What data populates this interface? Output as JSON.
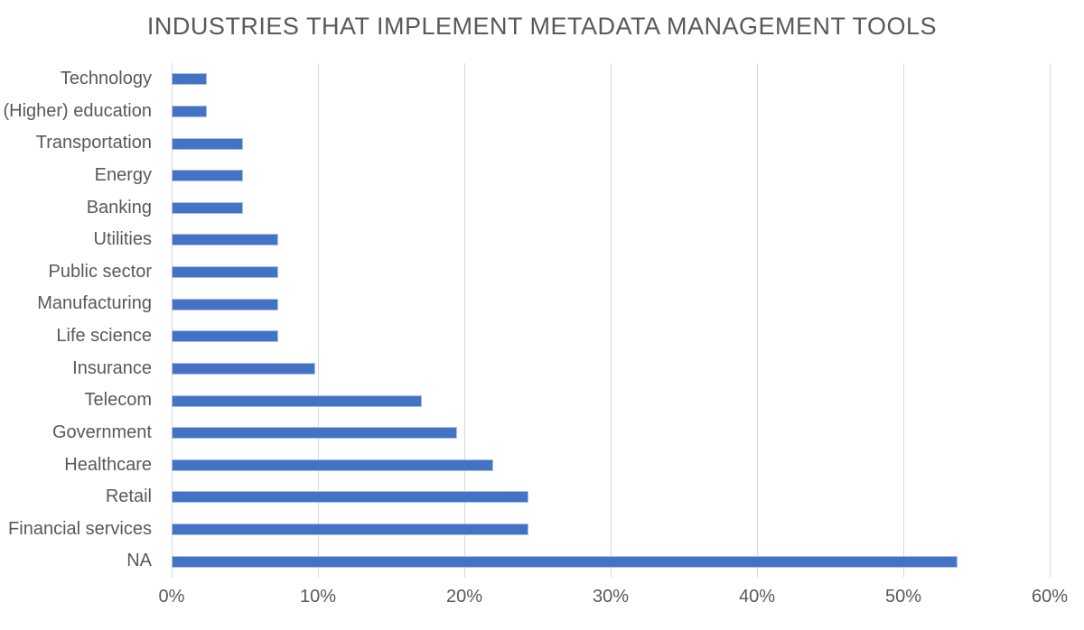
{
  "title": "INDUSTRIES THAT IMPLEMENT METADATA MANAGEMENT TOOLS",
  "chart_data": {
    "type": "bar",
    "orientation": "horizontal",
    "title": "INDUSTRIES THAT IMPLEMENT METADATA MANAGEMENT TOOLS",
    "xlabel": "",
    "ylabel": "",
    "categories": [
      "Technology",
      "(Higher) education",
      "Transportation",
      "Energy",
      "Banking",
      "Utilities",
      "Public sector",
      "Manufacturing",
      "Life science",
      "Insurance",
      "Telecom",
      "Government",
      "Healthcare",
      "Retail",
      "Financial services",
      "NA"
    ],
    "values": [
      2.4,
      2.4,
      4.9,
      4.9,
      4.9,
      7.3,
      7.3,
      7.3,
      7.3,
      9.8,
      17.1,
      19.5,
      22.0,
      24.4,
      24.4,
      53.7
    ],
    "unit": "%",
    "xlim": [
      0,
      60
    ],
    "x_tick_values": [
      0,
      10,
      20,
      30,
      40,
      50,
      60
    ],
    "x_tick_labels": [
      "0%",
      "10%",
      "20%",
      "30%",
      "40%",
      "50%",
      "60%"
    ],
    "grid": "vertical-gridlines-on",
    "legend": "none",
    "colors": {
      "bar": "#4472C4",
      "bar_border": "#a9bfe6",
      "gridline": "#d9d9d9",
      "text": "#595959",
      "background": "#ffffff"
    }
  }
}
